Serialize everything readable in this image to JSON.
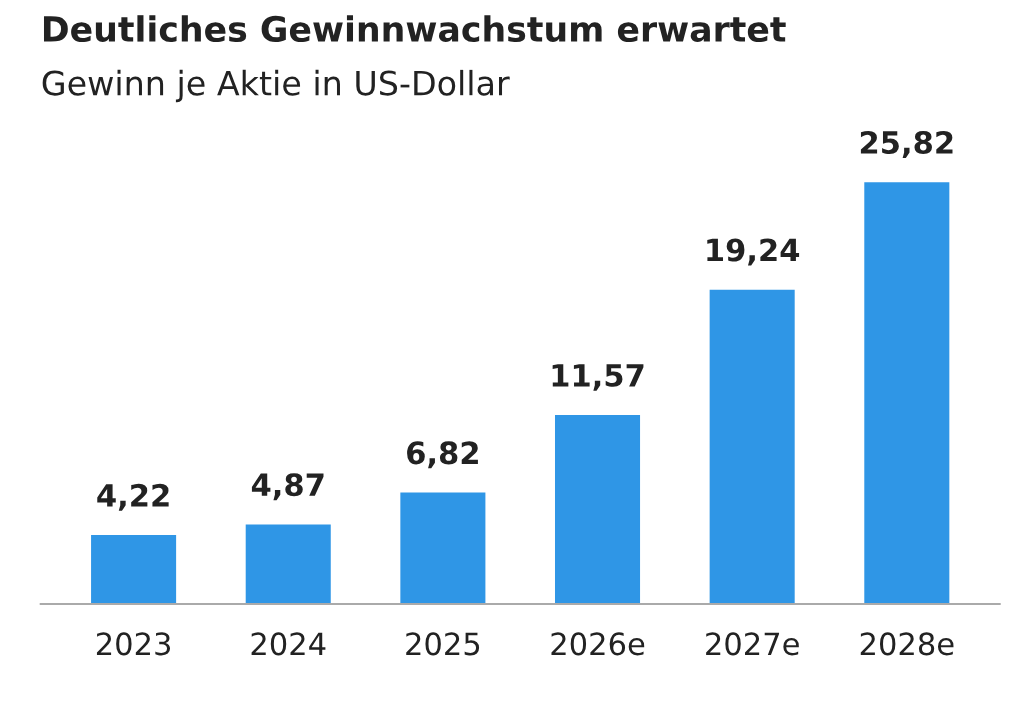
{
  "chart_data": {
    "type": "bar",
    "title": "Deutliches Gewinnwachstum erwartet",
    "subtitle": "Gewinn je Aktie in US-Dollar",
    "categories": [
      "2023",
      "2024",
      "2025",
      "2026e",
      "2027e",
      "2028e"
    ],
    "values": [
      4.22,
      4.87,
      6.82,
      11.57,
      19.24,
      25.82
    ],
    "value_labels": [
      "4,22",
      "4,87",
      "6,82",
      "11,57",
      "19,24",
      "25,82"
    ],
    "color": "#2f96e6",
    "grid": false,
    "legend": false
  }
}
